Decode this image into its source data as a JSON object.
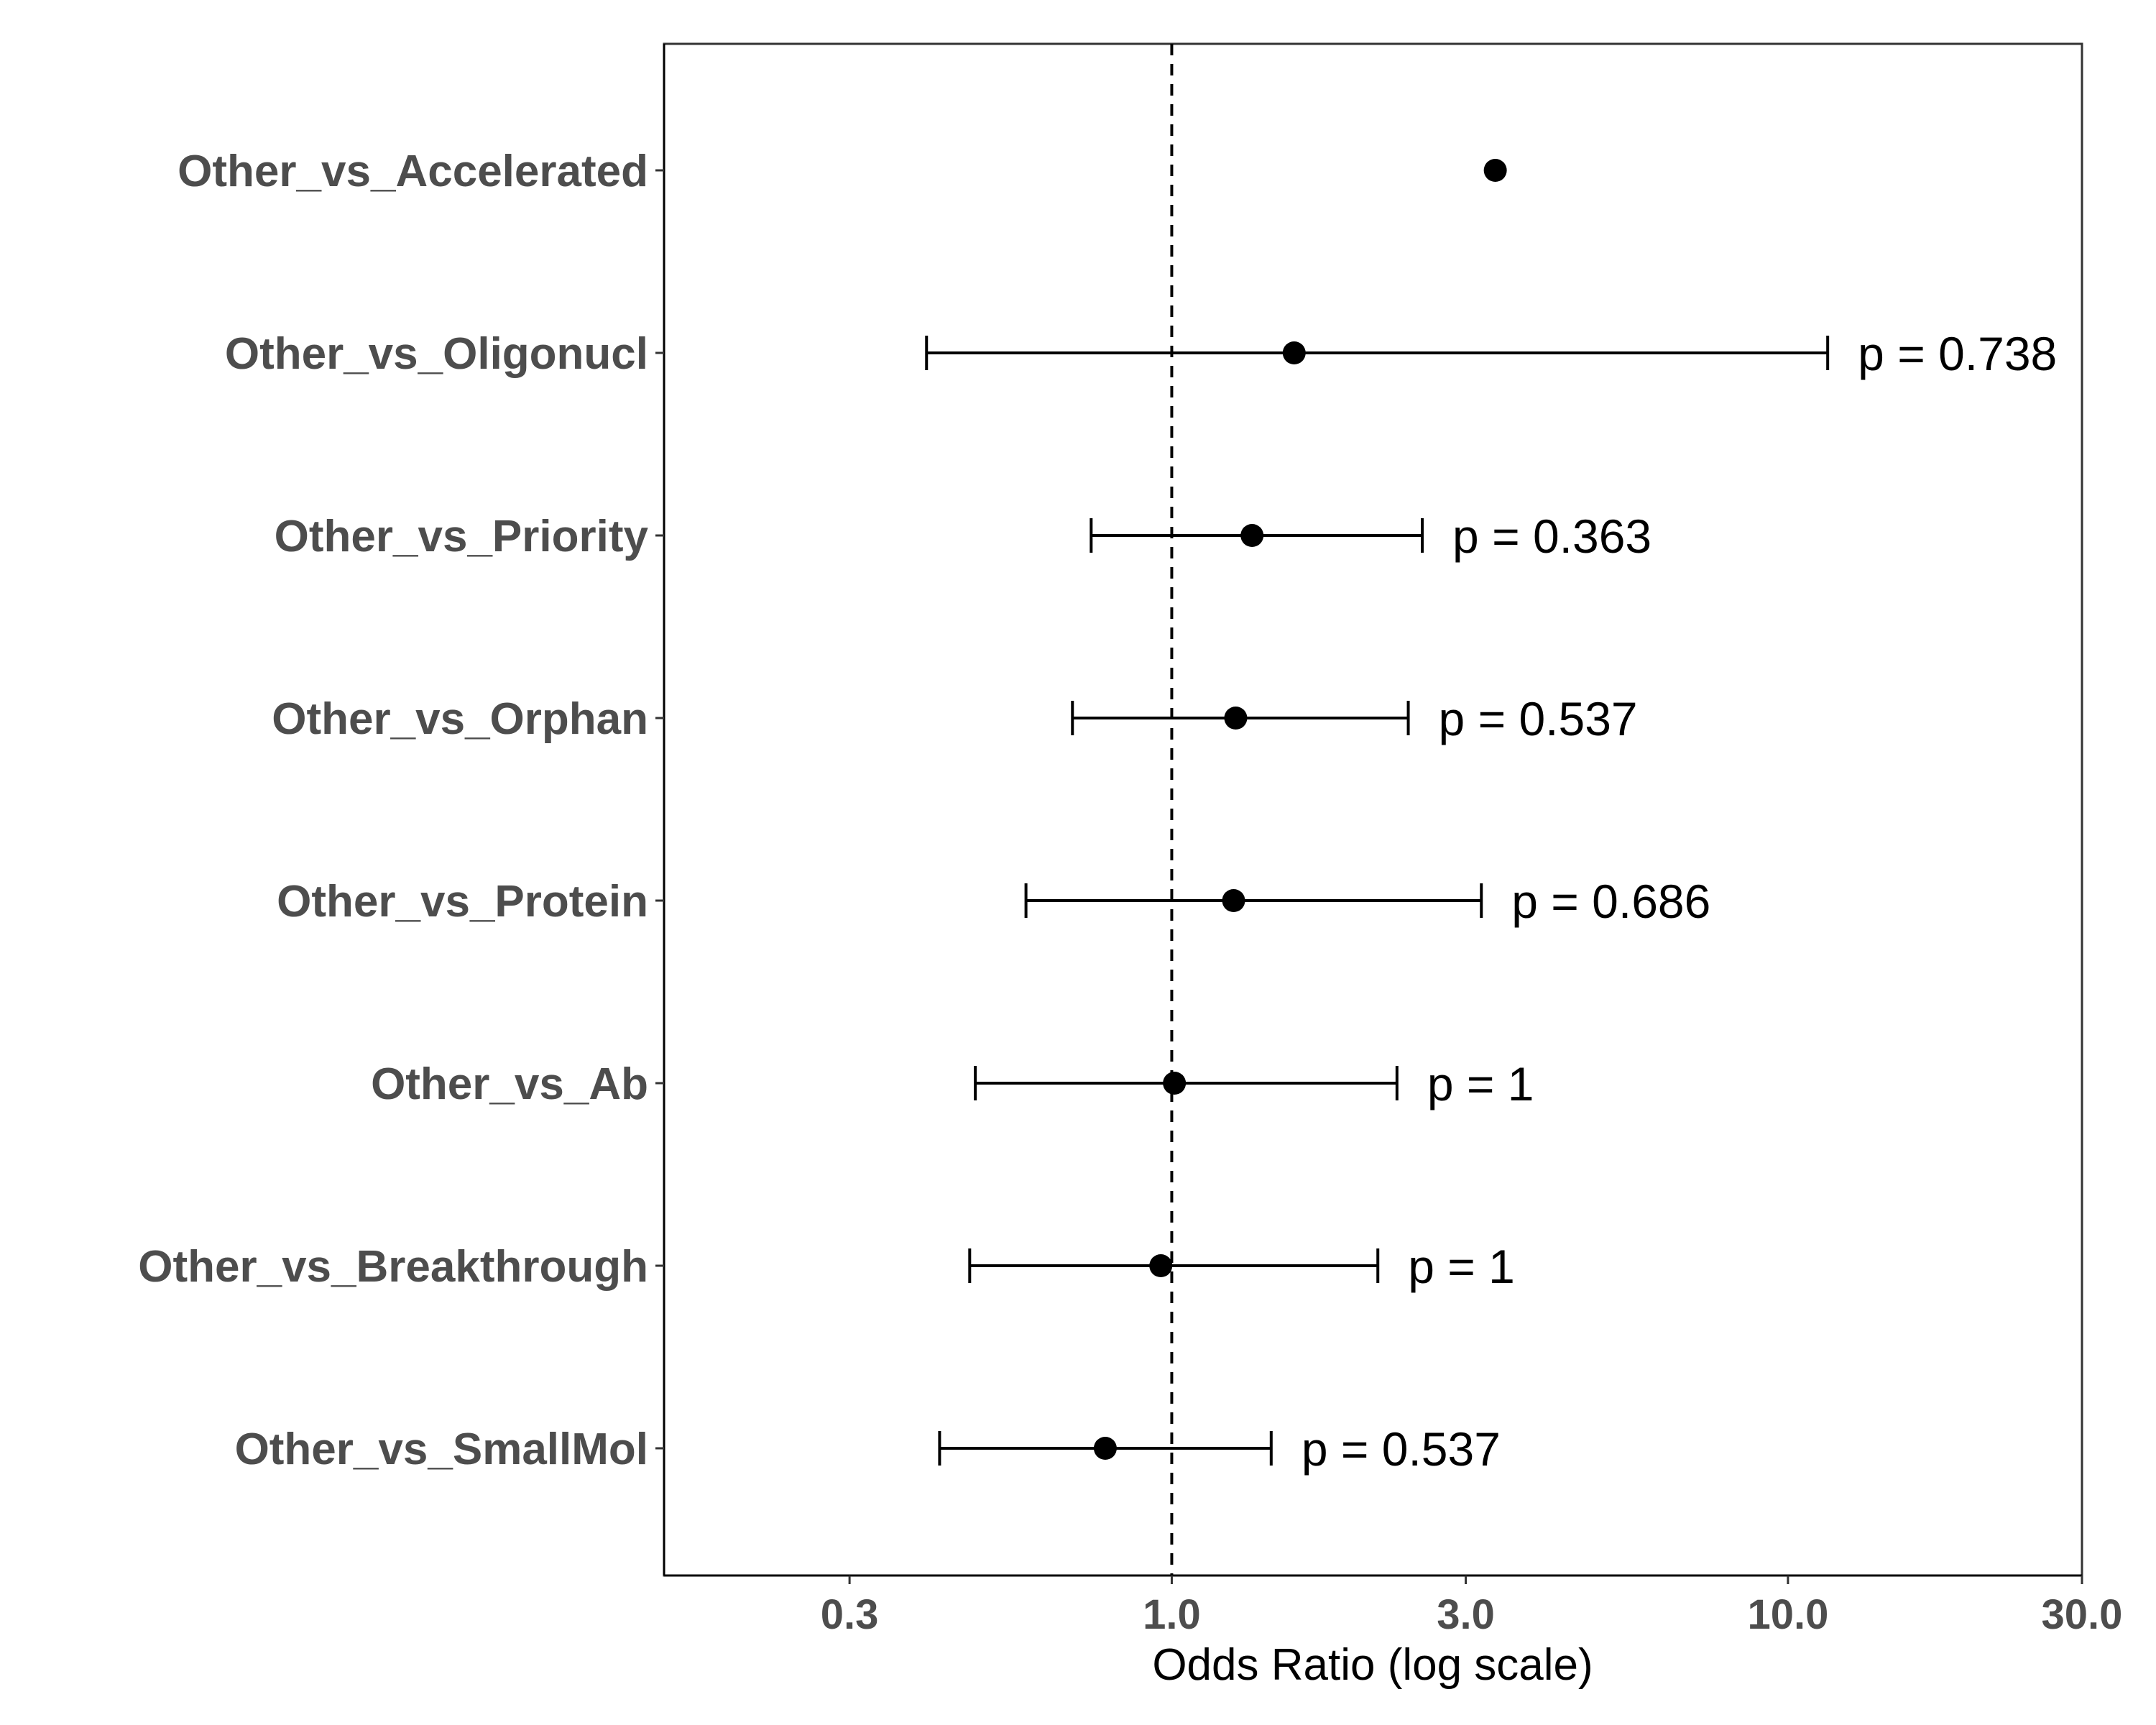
{
  "chart_data": {
    "type": "scatter",
    "subtype": "forest-plot",
    "title": "",
    "xlabel": "Odds Ratio (log scale)",
    "ylabel": "",
    "x_scale": "log",
    "xlim": [
      0.15,
      30
    ],
    "x_ticks": [
      0.3,
      1.0,
      3.0,
      10.0,
      30.0
    ],
    "x_tick_labels": [
      "0.3",
      "1.0",
      "3.0",
      "10.0",
      "30.0"
    ],
    "reference_line": 1.0,
    "grid": false,
    "legend": "none",
    "categories": [
      "Other_vs_Accelerated",
      "Other_vs_Oligonucl",
      "Other_vs_Priority",
      "Other_vs_Orphan",
      "Other_vs_Protein",
      "Other_vs_Ab",
      "Other_vs_Breakthrough",
      "Other_vs_SmallMol"
    ],
    "estimates": [
      3.35,
      1.58,
      1.35,
      1.27,
      1.26,
      1.01,
      0.96,
      0.78
    ],
    "ci_lower": [
      null,
      0.4,
      0.74,
      0.69,
      0.58,
      0.48,
      0.47,
      0.42
    ],
    "ci_upper": [
      null,
      11.6,
      2.55,
      2.42,
      3.18,
      2.32,
      2.16,
      1.45
    ],
    "p_labels": [
      null,
      "p = 0.738",
      "p = 0.363",
      "p = 0.537",
      "p = 0.686",
      "p = 1",
      "p = 1",
      "p = 0.537"
    ],
    "colors": {
      "points": "#000000",
      "text": "#4d4d4d",
      "reference_line": "#000000"
    }
  }
}
